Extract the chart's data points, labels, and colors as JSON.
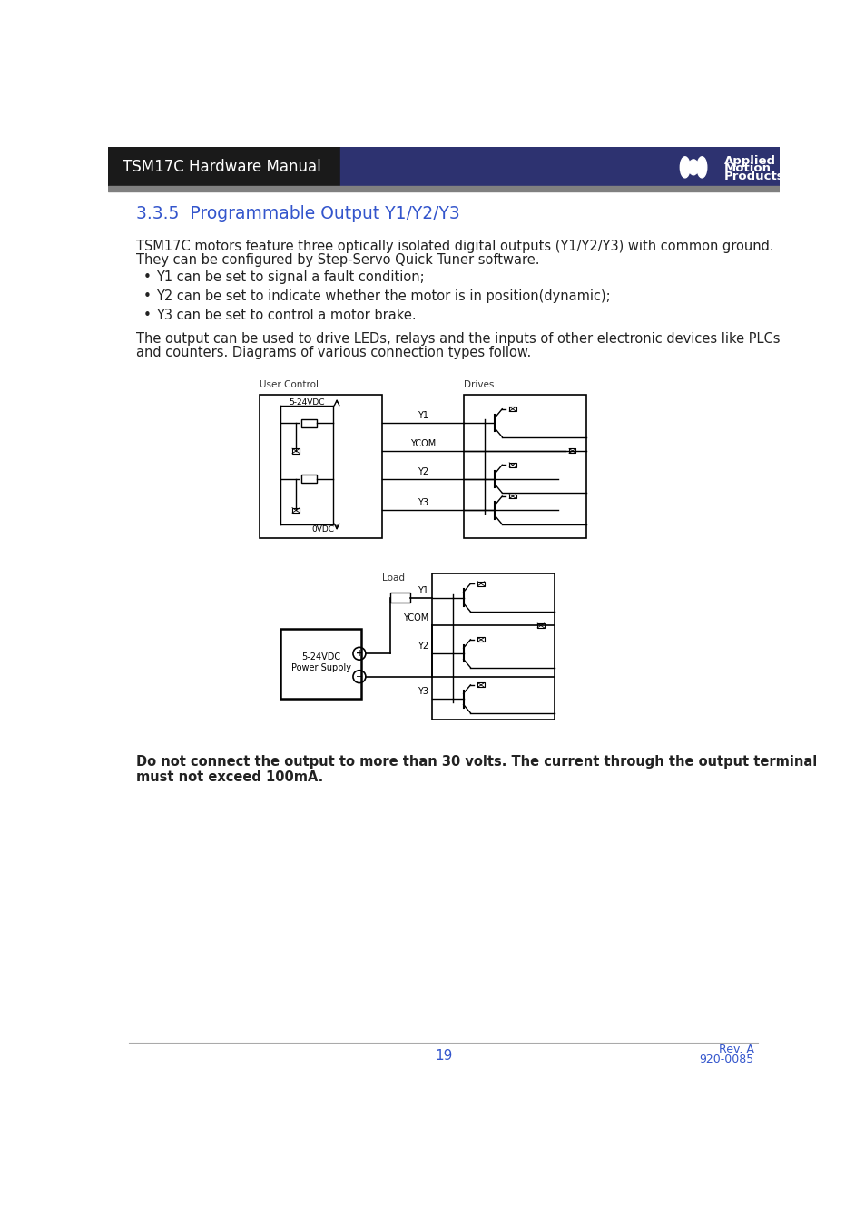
{
  "header_left_text": "TSM17C Hardware Manual",
  "header_left_bg": "#1a1a1a",
  "header_right_bg": "#2d3270",
  "header_text_color": "#ffffff",
  "section_title": "3.3.5  Programmable Output Y1/Y2/Y3",
  "section_title_color": "#3355cc",
  "body_text_color": "#222222",
  "para1_line1": "TSM17C motors feature three optically isolated digital outputs (Y1/Y2/Y3) with common ground.",
  "para1_line2": "They can be configured by Step-Servo Quick Tuner software.",
  "bullet1": "Y1 can be set to signal a fault condition;",
  "bullet2": "Y2 can be set to indicate whether the motor is in position(dynamic);",
  "bullet3": "Y3 can be set to control a motor brake.",
  "para2_line1": "The output can be used to drive LEDs, relays and the inputs of other electronic devices like PLCs",
  "para2_line2": "and counters. Diagrams of various connection types follow.",
  "warning_line1": "Do not connect the output to more than 30 volts. The current through the output terminal",
  "warning_line2": "must not exceed 100mA.",
  "footer_page": "19",
  "footer_rev": "Rev. A",
  "footer_doc": "920-0085",
  "footer_color": "#3355cc",
  "gray_bar_color": "#808080",
  "diag1_label_left": "User Control",
  "diag1_label_right": "Drives",
  "diag1_voltage_top": "5-24VDC",
  "diag1_voltage_bottom": "0VDC",
  "diag1_y1": "Y1",
  "diag1_ycom": "YCOM",
  "diag1_y2": "Y2",
  "diag1_y3": "Y3",
  "diag2_label_load": "Load",
  "diag2_ps_label": "5-24VDC\nPower Supply",
  "diag2_y1": "Y1",
  "diag2_ycom": "YCOM",
  "diag2_y2": "Y2",
  "diag2_y3": "Y3"
}
